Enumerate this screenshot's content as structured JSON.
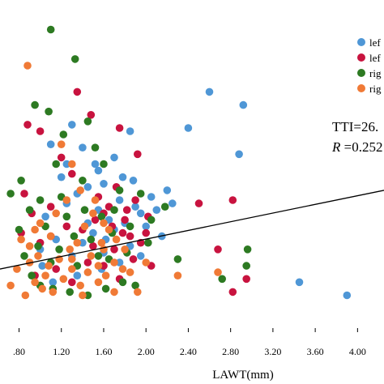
{
  "chart_data": {
    "type": "scatter",
    "title": "",
    "xlabel": "LAWT(mm)",
    "ylabel": "",
    "xlim": [
      0.62,
      4.25
    ],
    "ylim": [
      0,
      10
    ],
    "xticks": [
      0.8,
      1.2,
      1.6,
      2.0,
      2.4,
      2.8,
      3.2,
      3.6,
      4.0
    ],
    "xtick_labels": [
      ".80",
      "1.20",
      "1.60",
      "2.00",
      "2.40",
      "2.80",
      "3.20",
      "3.60",
      "4.00"
    ],
    "grid": false,
    "legend_position": "top-right",
    "annotations": [
      {
        "id": "tti",
        "text": "TTI=26."
      },
      {
        "id": "r",
        "prefix": "R",
        "text": " =0.252"
      }
    ],
    "regression_line": {
      "x": [
        0.62,
        4.25
      ],
      "y": [
        1.8,
        4.2
      ]
    },
    "series": [
      {
        "name": "lef",
        "color": "#4f97d6",
        "points": [
          [
            2.6,
            7.2
          ],
          [
            2.92,
            6.8
          ],
          [
            2.4,
            6.1
          ],
          [
            2.88,
            5.3
          ],
          [
            2.2,
            4.2
          ],
          [
            2.05,
            4.0
          ],
          [
            3.45,
            1.4
          ],
          [
            3.9,
            1.0
          ],
          [
            1.85,
            6.0
          ],
          [
            1.7,
            5.2
          ],
          [
            1.55,
            4.8
          ],
          [
            1.4,
            5.5
          ],
          [
            1.1,
            5.6
          ],
          [
            1.3,
            6.2
          ],
          [
            1.75,
            3.9
          ],
          [
            1.9,
            3.7
          ],
          [
            2.1,
            3.6
          ],
          [
            1.45,
            4.3
          ],
          [
            1.6,
            4.4
          ],
          [
            1.65,
            3.3
          ],
          [
            1.8,
            3.2
          ],
          [
            1.95,
            3.5
          ],
          [
            1.5,
            2.9
          ],
          [
            1.25,
            3.8
          ],
          [
            1.05,
            3.4
          ],
          [
            1.35,
            4.1
          ],
          [
            1.2,
            4.6
          ],
          [
            1.55,
            3.6
          ],
          [
            1.7,
            3.0
          ],
          [
            2.0,
            3.1
          ],
          [
            1.85,
            2.5
          ],
          [
            1.4,
            2.6
          ],
          [
            1.15,
            2.7
          ],
          [
            1.6,
            2.3
          ],
          [
            1.75,
            2.0
          ],
          [
            1.3,
            2.2
          ],
          [
            1.0,
            2.4
          ],
          [
            2.15,
            2.8
          ],
          [
            1.25,
            5.0
          ],
          [
            1.45,
            3.2
          ],
          [
            1.62,
            2.7
          ],
          [
            1.88,
            4.5
          ],
          [
            1.52,
            5.0
          ],
          [
            1.78,
            4.6
          ],
          [
            2.25,
            3.8
          ],
          [
            1.02,
            1.9
          ],
          [
            1.12,
            1.4
          ],
          [
            1.35,
            1.6
          ],
          [
            1.58,
            1.8
          ],
          [
            1.95,
            2.2
          ]
        ]
      },
      {
        "name": "lef",
        "color": "#c8133f",
        "points": [
          [
            0.88,
            6.2
          ],
          [
            1.0,
            6.0
          ],
          [
            1.35,
            7.2
          ],
          [
            1.48,
            6.5
          ],
          [
            1.75,
            6.1
          ],
          [
            1.92,
            5.3
          ],
          [
            2.5,
            3.8
          ],
          [
            2.82,
            3.9
          ],
          [
            2.68,
            2.4
          ],
          [
            2.95,
            1.5
          ],
          [
            2.82,
            1.1
          ],
          [
            2.05,
            1.9
          ],
          [
            0.85,
            4.1
          ],
          [
            0.92,
            3.5
          ],
          [
            0.82,
            2.9
          ],
          [
            1.2,
            5.2
          ],
          [
            1.3,
            4.7
          ],
          [
            1.55,
            4.0
          ],
          [
            1.65,
            3.7
          ],
          [
            1.8,
            3.3
          ],
          [
            1.85,
            2.8
          ],
          [
            1.95,
            2.6
          ],
          [
            1.7,
            2.4
          ],
          [
            1.5,
            2.5
          ],
          [
            1.4,
            3.0
          ],
          [
            1.25,
            3.1
          ],
          [
            1.1,
            2.8
          ],
          [
            1.0,
            2.6
          ],
          [
            1.6,
            3.5
          ],
          [
            1.72,
            4.3
          ],
          [
            1.9,
            3.9
          ],
          [
            2.02,
            3.4
          ],
          [
            1.78,
            2.9
          ],
          [
            1.45,
            2.0
          ],
          [
            1.6,
            1.9
          ],
          [
            1.15,
            1.8
          ],
          [
            0.95,
            1.6
          ],
          [
            1.3,
            1.4
          ],
          [
            1.75,
            1.5
          ],
          [
            1.88,
            2.1
          ],
          [
            1.68,
            3.1
          ],
          [
            1.52,
            3.3
          ],
          [
            1.82,
            3.6
          ],
          [
            2.0,
            2.9
          ],
          [
            1.1,
            3.7
          ]
        ]
      },
      {
        "name": "rig",
        "color": "#2d7a22",
        "points": [
          [
            1.1,
            9.1
          ],
          [
            1.33,
            8.2
          ],
          [
            0.95,
            6.8
          ],
          [
            1.08,
            6.6
          ],
          [
            1.22,
            5.9
          ],
          [
            1.45,
            6.3
          ],
          [
            1.6,
            5.0
          ],
          [
            2.3,
            2.1
          ],
          [
            2.96,
            2.4
          ],
          [
            2.95,
            1.9
          ],
          [
            2.72,
            1.5
          ],
          [
            0.72,
            4.1
          ],
          [
            0.82,
            4.5
          ],
          [
            0.9,
            3.6
          ],
          [
            0.8,
            3.0
          ],
          [
            0.85,
            2.2
          ],
          [
            0.92,
            1.6
          ],
          [
            1.0,
            1.3
          ],
          [
            1.12,
            1.2
          ],
          [
            1.28,
            1.1
          ],
          [
            1.45,
            1.0
          ],
          [
            1.62,
            1.2
          ],
          [
            1.78,
            1.4
          ],
          [
            1.9,
            1.3
          ],
          [
            1.05,
            3.1
          ],
          [
            1.18,
            2.4
          ],
          [
            1.32,
            2.8
          ],
          [
            1.48,
            2.7
          ],
          [
            1.58,
            3.4
          ],
          [
            1.7,
            3.6
          ],
          [
            1.85,
            3.1
          ],
          [
            2.05,
            3.3
          ],
          [
            2.18,
            3.7
          ],
          [
            1.95,
            4.1
          ],
          [
            1.75,
            4.2
          ],
          [
            1.4,
            4.5
          ],
          [
            1.2,
            4.0
          ],
          [
            1.0,
            3.9
          ],
          [
            1.52,
            5.5
          ],
          [
            1.1,
            2.0
          ],
          [
            1.35,
            1.9
          ],
          [
            1.65,
            2.1
          ],
          [
            1.82,
            2.3
          ],
          [
            2.02,
            2.6
          ],
          [
            1.25,
            3.4
          ],
          [
            1.55,
            2.2
          ],
          [
            1.42,
            3.6
          ],
          [
            1.68,
            2.9
          ],
          [
            0.98,
            2.5
          ],
          [
            1.15,
            5.0
          ]
        ]
      },
      {
        "name": "rig",
        "color": "#f07a36",
        "points": [
          [
            0.88,
            8.0
          ],
          [
            1.2,
            5.6
          ],
          [
            1.3,
            5.0
          ],
          [
            2.3,
            1.6
          ],
          [
            2.68,
            1.7
          ],
          [
            0.72,
            1.3
          ],
          [
            0.86,
            1.0
          ],
          [
            0.9,
            2.0
          ],
          [
            0.95,
            1.4
          ],
          [
            1.05,
            1.6
          ],
          [
            1.12,
            1.1
          ],
          [
            1.22,
            1.5
          ],
          [
            1.3,
            1.8
          ],
          [
            1.38,
            1.3
          ],
          [
            1.45,
            1.7
          ],
          [
            1.55,
            1.4
          ],
          [
            1.62,
            1.6
          ],
          [
            1.7,
            1.1
          ],
          [
            1.78,
            1.8
          ],
          [
            1.48,
            2.2
          ],
          [
            1.58,
            2.6
          ],
          [
            1.65,
            3.0
          ],
          [
            1.72,
            2.7
          ],
          [
            1.6,
            3.2
          ],
          [
            1.5,
            3.5
          ],
          [
            1.42,
            3.1
          ],
          [
            1.35,
            2.6
          ],
          [
            1.28,
            2.4
          ],
          [
            1.18,
            2.1
          ],
          [
            1.08,
            1.9
          ],
          [
            0.98,
            2.2
          ],
          [
            0.9,
            2.5
          ],
          [
            0.82,
            2.7
          ],
          [
            1.0,
            3.2
          ],
          [
            1.15,
            3.5
          ],
          [
            1.25,
            3.9
          ],
          [
            1.38,
            4.2
          ],
          [
            1.52,
            3.9
          ],
          [
            1.85,
            1.7
          ],
          [
            2.0,
            2.0
          ],
          [
            1.92,
            1.1
          ],
          [
            1.7,
            2.0
          ],
          [
            1.4,
            1.0
          ],
          [
            1.6,
            2.4
          ],
          [
            0.95,
            3.0
          ],
          [
            1.1,
            2.8
          ],
          [
            1.55,
            1.9
          ],
          [
            1.8,
            2.4
          ],
          [
            0.78,
            1.8
          ],
          [
            1.3,
            2.1
          ],
          [
            1.02,
            1.2
          ]
        ]
      }
    ]
  }
}
